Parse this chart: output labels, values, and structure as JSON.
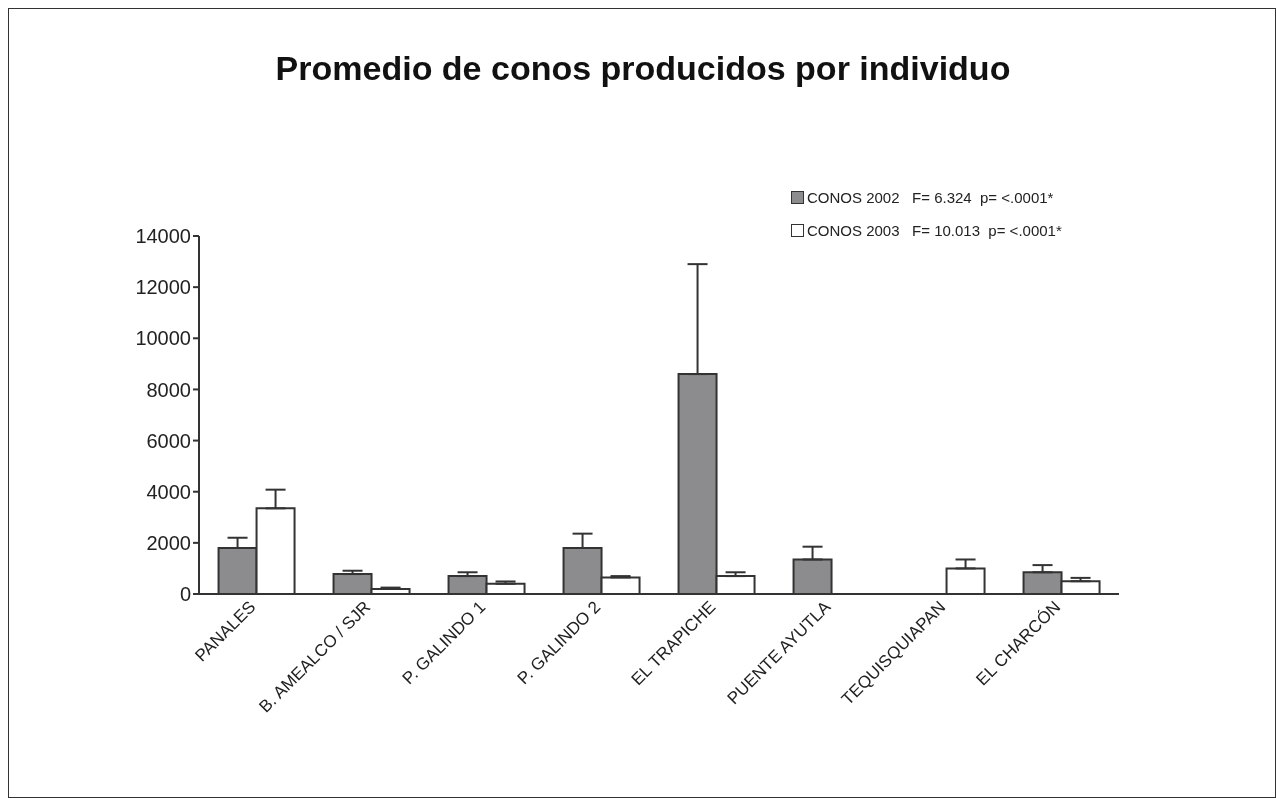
{
  "chart_data": {
    "type": "bar",
    "title": "Promedio de conos producidos por individuo",
    "categories": [
      "PANALES",
      "B. AMEALCO / SJR",
      "P. GALINDO 1",
      "P. GALINDO 2",
      "EL TRAPICHE",
      "PUENTE AYUTLA",
      "TEQUISQUIAPAN",
      "EL CHARCÓN"
    ],
    "series": [
      {
        "name": "CONOS 2002   F= 6.324  p= <.0001*",
        "color": "#8c8c8e",
        "values": [
          1800,
          780,
          700,
          1800,
          8600,
          1350,
          null,
          850
        ],
        "errors": [
          [
            1800,
            2200
          ],
          [
            780,
            910
          ],
          [
            700,
            850
          ],
          [
            1800,
            2360
          ],
          [
            8600,
            12900
          ],
          [
            1350,
            1850
          ],
          null,
          [
            850,
            1130
          ]
        ]
      },
      {
        "name": "CONOS 2003   F= 10.013  p= <.0001*",
        "color": "#ffffff",
        "values": [
          3350,
          200,
          400,
          650,
          700,
          null,
          1000,
          500
        ],
        "errors": [
          [
            3350,
            4080
          ],
          [
            200,
            250
          ],
          [
            400,
            490
          ],
          [
            650,
            700
          ],
          [
            700,
            850
          ],
          null,
          [
            1000,
            1350
          ],
          [
            500,
            630
          ]
        ]
      }
    ],
    "ylim": [
      0,
      14000
    ],
    "yticks": [
      0,
      2000,
      4000,
      6000,
      8000,
      10000,
      12000,
      14000
    ],
    "grid": false,
    "legend": "top right"
  }
}
